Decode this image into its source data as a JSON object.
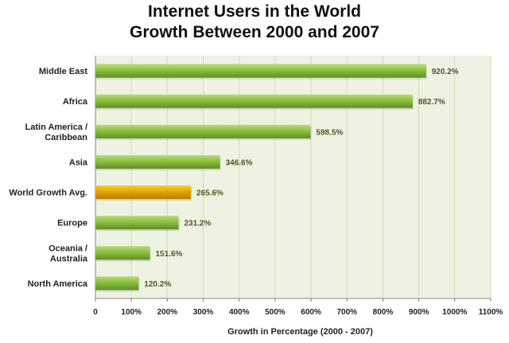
{
  "chart_data": {
    "type": "bar",
    "orientation": "horizontal",
    "title": "Internet Users in the World",
    "subtitle": "Growth Between 2000 and 2007",
    "xlabel": "Growth in Percentage (2000 - 2007)",
    "ylabel": "",
    "xlim": [
      0,
      1100
    ],
    "x_ticks": [
      "0",
      "100%",
      "200%",
      "300%",
      "400%",
      "500%",
      "600%",
      "700%",
      "800%",
      "900%",
      "1000%",
      "1100%"
    ],
    "grid": "vertical",
    "categories": [
      {
        "label_lines": [
          "Middle East"
        ]
      },
      {
        "label_lines": [
          "Africa"
        ]
      },
      {
        "label_lines": [
          "Latin America /",
          "Caribbean"
        ]
      },
      {
        "label_lines": [
          "Asia"
        ]
      },
      {
        "label_lines": [
          "World Growth Avg."
        ]
      },
      {
        "label_lines": [
          "Europe"
        ]
      },
      {
        "label_lines": [
          "Oceania  /",
          "Australia"
        ]
      },
      {
        "label_lines": [
          "North America"
        ]
      }
    ],
    "values": [
      920.2,
      882.7,
      598.5,
      346.6,
      265.6,
      231.2,
      151.6,
      120.2
    ],
    "value_labels": [
      "920.2%",
      "882.7%",
      "598.5%",
      "346.6%",
      "265.6%",
      "231.2%",
      "151.6%",
      "120.2%"
    ],
    "highlight_index": 4,
    "colors": {
      "bar": "#8cbf3f",
      "bar_light": "#b5dc78",
      "bar_dark": "#5f8f24",
      "highlight": "#e2a600",
      "highlight_light": "#f6cf3c",
      "highlight_dark": "#b77f00",
      "plot_bg": "#eef2e2",
      "grid": "#d3dcb9"
    }
  }
}
